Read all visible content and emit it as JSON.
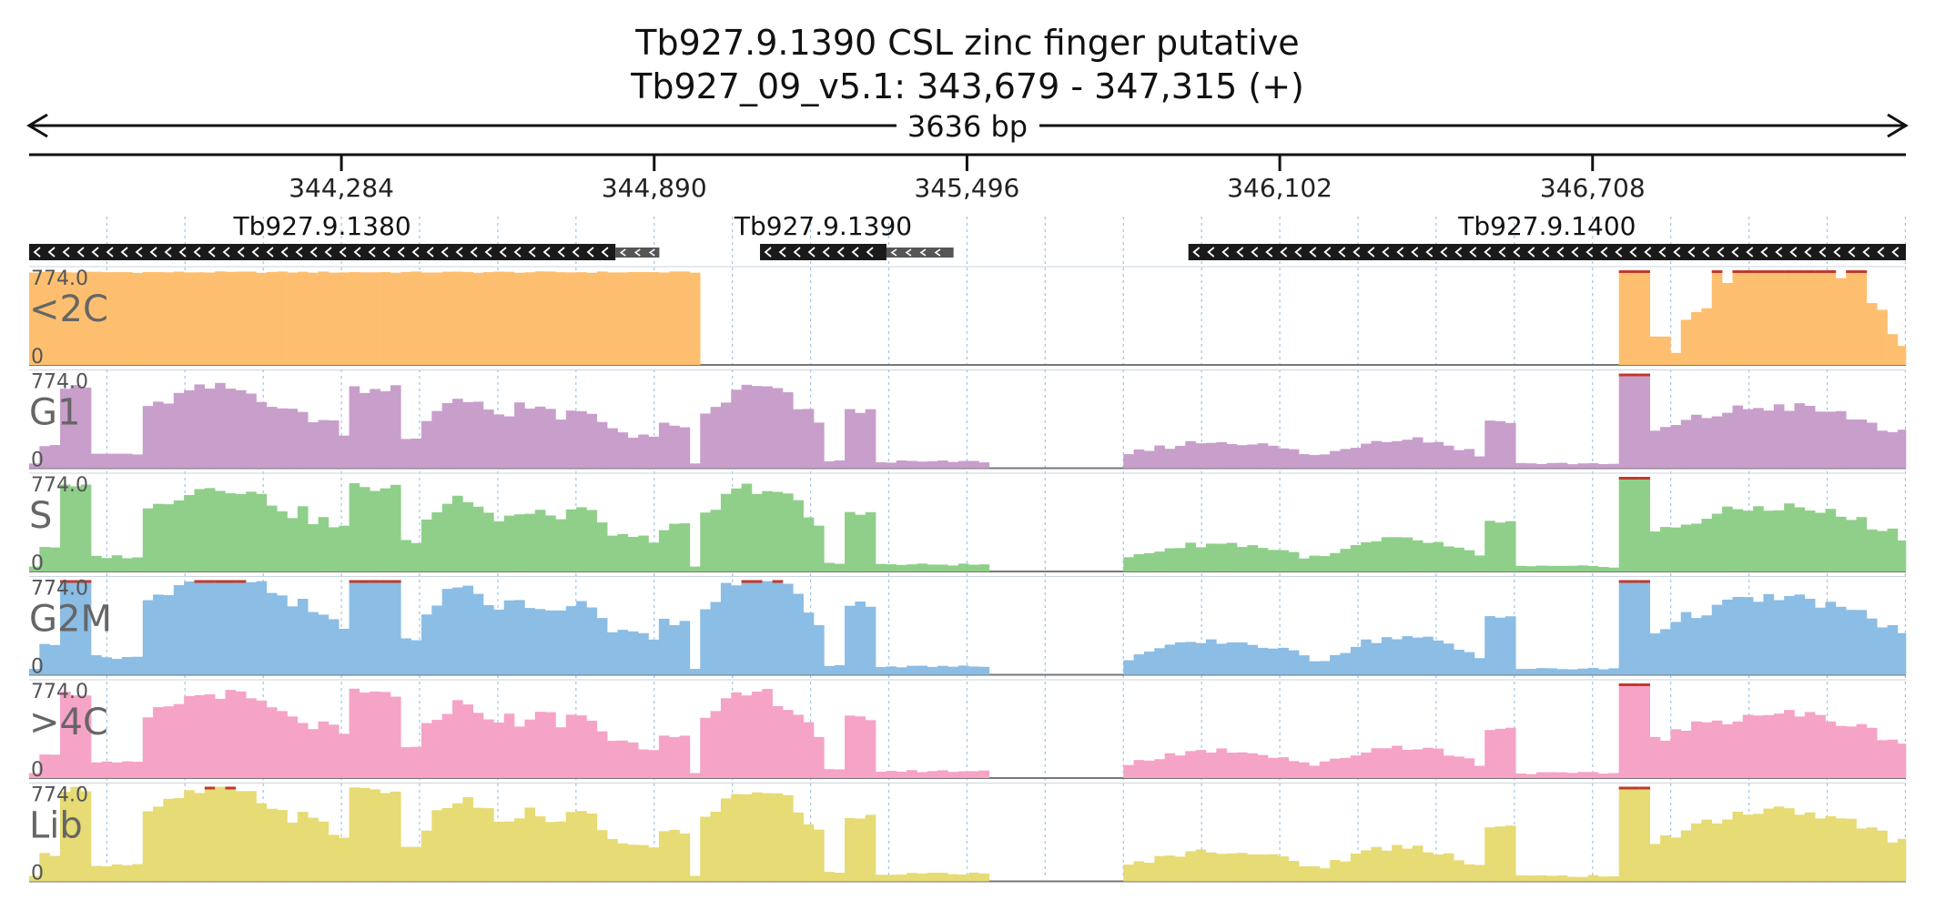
{
  "header": {
    "title": "Tb927.9.1390  CSL zinc finger  putative",
    "location": "Tb927_09_v5.1: 343,679 - 347,315 (+)",
    "span_label": "3636 bp"
  },
  "chart_data": {
    "type": "area",
    "x_range": [
      343679,
      347315
    ],
    "ticks": [
      {
        "pos": 344284,
        "label": "344,284"
      },
      {
        "pos": 344890,
        "label": "344,890"
      },
      {
        "pos": 345496,
        "label": "345,496"
      },
      {
        "pos": 346102,
        "label": "346,102"
      },
      {
        "pos": 346708,
        "label": "346,708"
      }
    ],
    "genes": [
      {
        "name": "Tb927.9.1380",
        "strand": "-",
        "start": 343679,
        "end": 344815,
        "utr_start": 344815,
        "utr_end": 344900
      },
      {
        "name": "Tb927.9.1390",
        "strand": "-",
        "start": 345095,
        "end": 345340,
        "utr_start": 345340,
        "utr_end": 345470
      },
      {
        "name": "Tb927.9.1400",
        "strand": "-",
        "start": 345925,
        "end": 347315,
        "utr_start": null,
        "utr_end": null
      }
    ],
    "y_scale": {
      "max_label": "774.0",
      "min_label": "0",
      "max": 774
    },
    "bin_size": 20,
    "regions": [
      {
        "start": 343679,
        "end": 343695,
        "level": 0.05,
        "shape": "flat",
        "amp": 0
      },
      {
        "start": 343695,
        "end": 343745,
        "level": 0.25,
        "shape": "flat",
        "amp": 0.05
      },
      {
        "start": 343745,
        "end": 343800,
        "level": 0.85,
        "shape": "flat",
        "amp": 0.08
      },
      {
        "start": 343800,
        "end": 343890,
        "level": 0.15,
        "shape": "flat",
        "amp": 0.05
      },
      {
        "start": 343890,
        "end": 344200,
        "level": 0.55,
        "shape": "hump",
        "amp": 0.15
      },
      {
        "start": 344200,
        "end": 344300,
        "level": 0.4,
        "shape": "down",
        "amp": 0.2
      },
      {
        "start": 344300,
        "end": 344400,
        "level": 0.85,
        "shape": "flat",
        "amp": 0.15
      },
      {
        "start": 344400,
        "end": 344440,
        "level": 0.3,
        "shape": "flat",
        "amp": 0.05
      },
      {
        "start": 344440,
        "end": 344600,
        "level": 0.45,
        "shape": "hump",
        "amp": 0.15
      },
      {
        "start": 344600,
        "end": 344690,
        "level": 0.6,
        "shape": "flat",
        "amp": 0.25
      },
      {
        "start": 344690,
        "end": 344800,
        "level": 0.4,
        "shape": "hump",
        "amp": 0.12
      },
      {
        "start": 344800,
        "end": 344890,
        "level": 0.3,
        "shape": "down",
        "amp": 0.1
      },
      {
        "start": 344890,
        "end": 344950,
        "level": 0.45,
        "shape": "flat",
        "amp": 0.1
      },
      {
        "start": 344950,
        "end": 344970,
        "level": 0.05,
        "shape": "flat",
        "amp": 0
      },
      {
        "start": 344970,
        "end": 345210,
        "level": 0.45,
        "shape": "hump",
        "amp": 0.2
      },
      {
        "start": 345210,
        "end": 345255,
        "level": 0.08,
        "shape": "flat",
        "amp": 0.03
      },
      {
        "start": 345255,
        "end": 345315,
        "level": 0.6,
        "shape": "flat",
        "amp": 0.08
      },
      {
        "start": 345315,
        "end": 345530,
        "level": 0.07,
        "shape": "flat",
        "amp": 0.03
      },
      {
        "start": 345530,
        "end": 345790,
        "level": 0,
        "shape": "flat",
        "amp": 0
      },
      {
        "start": 345790,
        "end": 346180,
        "level": 0.12,
        "shape": "hump",
        "amp": 0.08
      },
      {
        "start": 346180,
        "end": 346500,
        "level": 0.12,
        "shape": "hump",
        "amp": 0.1
      },
      {
        "start": 346500,
        "end": 346560,
        "level": 0.5,
        "shape": "flat",
        "amp": 0.06
      },
      {
        "start": 346560,
        "end": 346760,
        "level": 0.05,
        "shape": "flat",
        "amp": 0.03
      },
      {
        "start": 346760,
        "end": 346815,
        "level": 1.0,
        "shape": "flat",
        "amp": 0
      },
      {
        "start": 346815,
        "end": 347315,
        "level": 0.35,
        "shape": "hump",
        "amp": 0.15
      }
    ],
    "series": [
      {
        "name": "<2C",
        "color": "#fdbf6f",
        "regions": [
          {
            "start": 343679,
            "end": 344970,
            "level": 0.98,
            "shape": "flat",
            "amp": 0.02
          },
          {
            "start": 344970,
            "end": 346760,
            "level": 0,
            "shape": "flat",
            "amp": 0
          },
          {
            "start": 346760,
            "end": 346815,
            "level": 1.0,
            "shape": "flat",
            "amp": 0
          },
          {
            "start": 346815,
            "end": 346860,
            "level": 0.3,
            "shape": "flat",
            "amp": 0
          },
          {
            "start": 346860,
            "end": 347315,
            "level": 0.25,
            "shape": "hump",
            "amp": 0.55
          }
        ]
      },
      {
        "name": "G1",
        "color": "#c89ecb",
        "use_common": true,
        "gain": 1.0
      },
      {
        "name": "S",
        "color": "#8fcf8a",
        "use_common": true,
        "gain": 1.05
      },
      {
        "name": "G2M",
        "color": "#8bbde5",
        "use_common": true,
        "gain": 1.25
      },
      {
        "name": ">4C",
        "color": "#f5a3c7",
        "use_common": true,
        "gain": 1.05
      },
      {
        "name": "Lib",
        "color": "#e6db74",
        "use_common": true,
        "gain": 1.15
      }
    ]
  }
}
